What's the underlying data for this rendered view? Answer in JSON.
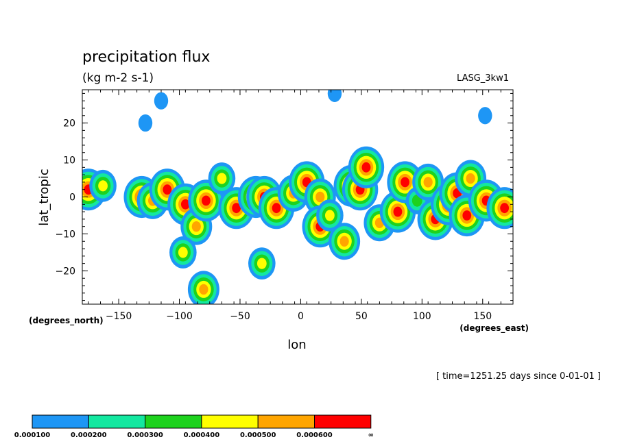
{
  "chart_data": {
    "type": "heatmap",
    "title": "precipitation flux",
    "subtitle": "(kg m-2 s-1)",
    "model_label": "LASG_3kw1",
    "xlabel": "lon",
    "ylabel": "lat_tropic",
    "x_units": "(degrees_east)",
    "y_units": "(degrees_north)",
    "time_label": "[ time=1251.25 days since 0-01-01 ]",
    "xlim": [
      -180,
      175
    ],
    "ylim": [
      -29,
      29
    ],
    "x_ticks": [
      -150,
      -100,
      -50,
      0,
      50,
      100,
      150
    ],
    "x_tick_labels": [
      "−150",
      "−100",
      "−50",
      "0",
      "50",
      "100",
      "150"
    ],
    "y_ticks": [
      -20,
      -10,
      0,
      10,
      20
    ],
    "y_tick_labels": [
      "−20",
      "−10",
      "0",
      "10",
      "20"
    ],
    "levels": [
      0.0001,
      0.0002,
      0.0003,
      0.0004,
      0.0005,
      0.0006
    ],
    "level_labels": [
      "0.000100",
      "0.000200",
      "0.000300",
      "0.000400",
      "0.000500",
      "0.000600",
      "∞"
    ],
    "level_colors": [
      "#1e96f5",
      "#13e8a0",
      "#1ed21e",
      "#ffff00",
      "#ffa500",
      "#ff0000"
    ],
    "cells": [
      {
        "lon": -175,
        "lat": 2,
        "level": 6
      },
      {
        "lon": -163,
        "lat": 3,
        "level": 4
      },
      {
        "lon": -131,
        "lat": 0,
        "level": 6
      },
      {
        "lon": -122,
        "lat": -1,
        "level": 5
      },
      {
        "lon": -110,
        "lat": 2,
        "level": 6
      },
      {
        "lon": -95,
        "lat": -2,
        "level": 6
      },
      {
        "lon": -86,
        "lat": -8,
        "level": 5
      },
      {
        "lon": -78,
        "lat": -1,
        "level": 6
      },
      {
        "lon": -65,
        "lat": 5,
        "level": 4
      },
      {
        "lon": -53,
        "lat": -3,
        "level": 6
      },
      {
        "lon": -37,
        "lat": 0,
        "level": 6
      },
      {
        "lon": -30,
        "lat": 0,
        "level": 6
      },
      {
        "lon": -20,
        "lat": -3,
        "level": 6
      },
      {
        "lon": -6,
        "lat": 1,
        "level": 5
      },
      {
        "lon": 5,
        "lat": 4,
        "level": 6
      },
      {
        "lon": 16,
        "lat": 0,
        "level": 5
      },
      {
        "lon": 16,
        "lat": -8,
        "level": 6
      },
      {
        "lon": 24,
        "lat": -5,
        "level": 4
      },
      {
        "lon": 36,
        "lat": -12,
        "level": 5
      },
      {
        "lon": 42,
        "lat": 3,
        "level": 6
      },
      {
        "lon": 49,
        "lat": 2,
        "level": 6
      },
      {
        "lon": 54,
        "lat": 8,
        "level": 6
      },
      {
        "lon": 65,
        "lat": -7,
        "level": 5
      },
      {
        "lon": 80,
        "lat": -4,
        "level": 6
      },
      {
        "lon": 86,
        "lat": 4,
        "level": 6
      },
      {
        "lon": 96,
        "lat": -1,
        "level": 3
      },
      {
        "lon": 105,
        "lat": 4,
        "level": 5
      },
      {
        "lon": 111,
        "lat": -6,
        "level": 6
      },
      {
        "lon": 122,
        "lat": -2,
        "level": 6
      },
      {
        "lon": 129,
        "lat": 1,
        "level": 6
      },
      {
        "lon": 137,
        "lat": -5,
        "level": 6
      },
      {
        "lon": 140,
        "lat": 5,
        "level": 5
      },
      {
        "lon": 153,
        "lat": -1,
        "level": 6
      },
      {
        "lon": 168,
        "lat": -3,
        "level": 6
      },
      {
        "lon": -97,
        "lat": -15,
        "level": 4
      },
      {
        "lon": -80,
        "lat": -25,
        "level": 5
      },
      {
        "lon": -32,
        "lat": -18,
        "level": 4
      },
      {
        "lon": -115,
        "lat": 26,
        "level": 1
      },
      {
        "lon": -128,
        "lat": 20,
        "level": 1
      },
      {
        "lon": 28,
        "lat": 28,
        "level": 1
      },
      {
        "lon": 152,
        "lat": 22,
        "level": 1
      }
    ]
  }
}
